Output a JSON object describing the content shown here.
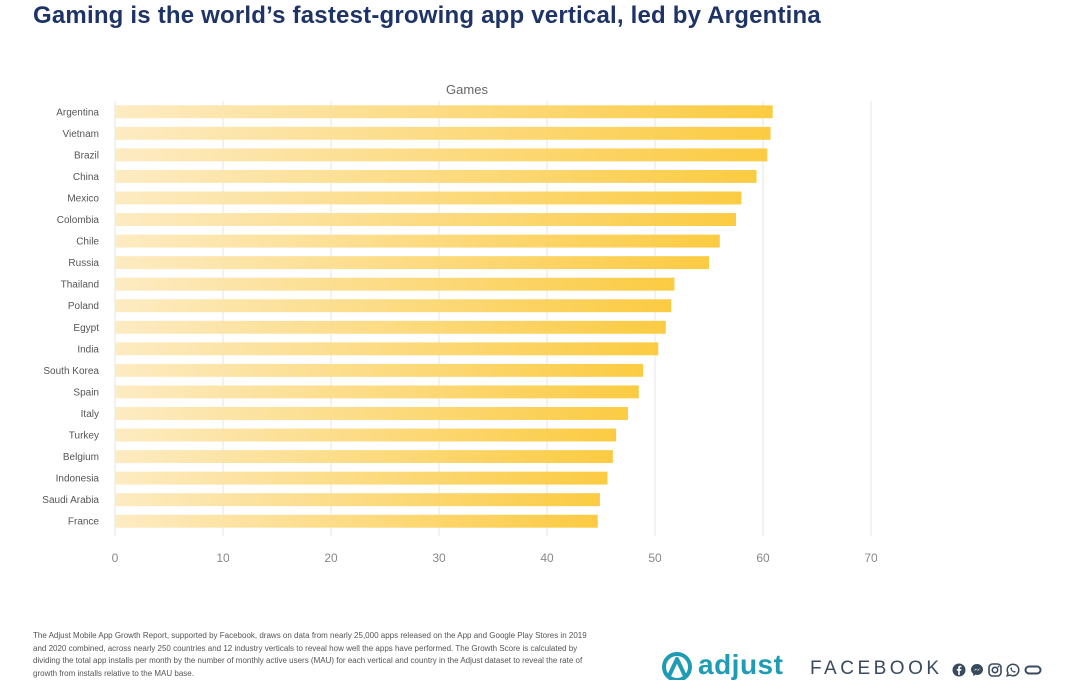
{
  "page": {
    "title": "Gaming is the world’s fastest-growing app vertical, led by Argentina",
    "footnote": "The Adjust Mobile App Growth Report, supported by Facebook, draws on data from nearly 25,000 apps released on the App and Google Play Stores in 2019 and 2020 combined, across nearly 250 countries and 12 industry verticals to reveal how well the apps have performed. The Growth Score is calculated by dividing the total app installs per month by the number of monthly active users (MAU) for each vertical and country in the Adjust dataset to reveal the rate of growth from installs relative to the MAU base.",
    "adjust_logo_text": "adjust",
    "facebook_logo_text": "FACEBOOK"
  },
  "colors": {
    "title": "#1f3466",
    "bar_light": "#fdebc2",
    "bar_dark": "#fbcb42",
    "grid": "#e6e6e6",
    "axis_text": "#888888",
    "label_text": "#555555",
    "adjust": "#1f9bb5"
  },
  "chart_data": {
    "type": "bar",
    "orientation": "horizontal",
    "title": "Games",
    "categories": [
      "Argentina",
      "Vietnam",
      "Brazil",
      "China",
      "Mexico",
      "Colombia",
      "Chile",
      "Russia",
      "Thailand",
      "Poland",
      "Egypt",
      "India",
      "South Korea",
      "Spain",
      "Italy",
      "Turkey",
      "Belgium",
      "Indonesia",
      "Saudi Arabia",
      "France"
    ],
    "values": [
      60.9,
      60.7,
      60.4,
      59.4,
      58.0,
      57.5,
      56.0,
      55.0,
      51.8,
      51.5,
      51.0,
      50.3,
      48.9,
      48.5,
      47.5,
      46.4,
      46.1,
      45.6,
      44.9,
      44.7
    ],
    "xlim": [
      0,
      70
    ],
    "xticks": [
      0,
      10,
      20,
      30,
      40,
      50,
      60,
      70
    ],
    "xlabel": "",
    "ylabel": "",
    "grid": true,
    "legend": "none"
  }
}
